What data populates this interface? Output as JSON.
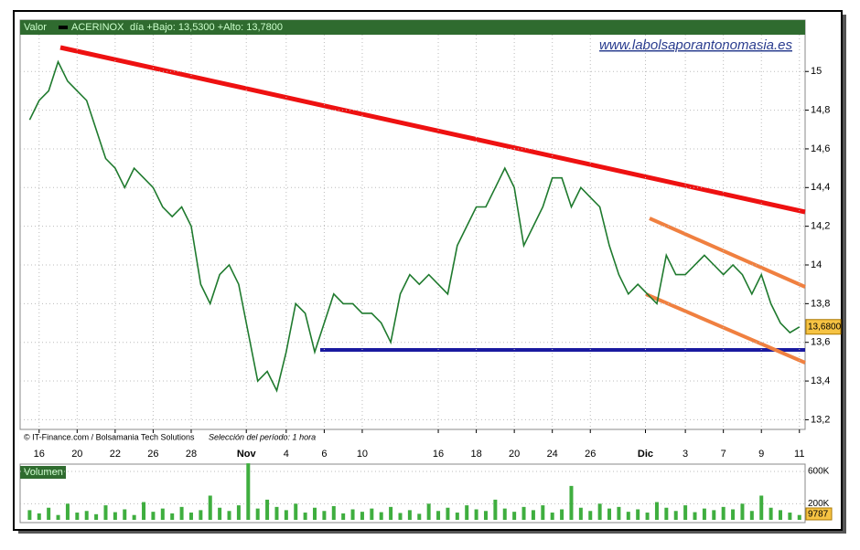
{
  "chart_data": {
    "type": "line",
    "header": {
      "label": "Valor",
      "info": "día +Bajo: 13,5300 +Alto: 13,7800"
    },
    "watermark": "www.labolsaporantonomasia.es",
    "footer": {
      "source": "© IT-Finance.com / Bolsamania Tech Solutions",
      "period": "Selección del período: 1 hora"
    },
    "x": [
      -0.5,
      0,
      0.5,
      1,
      1.5,
      2,
      2.5,
      3,
      3.5,
      4,
      4.5,
      5,
      5.5,
      6,
      6.5,
      7,
      7.5,
      8,
      8.5,
      9,
      9.5,
      10,
      10.5,
      11,
      11.5,
      12,
      12.5,
      13,
      13.5,
      14,
      14.5,
      15,
      15.5,
      16,
      16.5,
      17,
      17.5,
      18,
      18.5,
      19,
      19.5,
      20,
      20.5,
      21,
      21.5,
      22,
      22.5,
      23,
      23.5,
      24,
      24.5,
      25,
      25.5,
      26,
      26.5,
      27,
      27.5,
      28,
      28.5,
      29,
      29.5,
      30,
      30.5,
      31,
      31.5,
      32,
      32.5,
      33,
      33.5,
      34,
      34.5,
      35,
      35.5,
      36,
      36.5,
      37,
      37.5,
      38,
      38.5,
      39,
      39.5,
      40
    ],
    "xlim": [
      -1,
      40.3
    ],
    "xticks": [
      {
        "value": 0,
        "label": "16"
      },
      {
        "value": 2,
        "label": "20"
      },
      {
        "value": 4,
        "label": "22"
      },
      {
        "value": 6,
        "label": "26"
      },
      {
        "value": 8,
        "label": "28"
      },
      {
        "value": 10.9,
        "label": "Nov"
      },
      {
        "value": 13,
        "label": "4"
      },
      {
        "value": 15,
        "label": "6"
      },
      {
        "value": 17,
        "label": "10"
      },
      {
        "value": 21,
        "label": "16"
      },
      {
        "value": 23,
        "label": "18"
      },
      {
        "value": 25,
        "label": "20"
      },
      {
        "value": 27,
        "label": "24"
      },
      {
        "value": 29,
        "label": "26"
      },
      {
        "value": 31.9,
        "label": "Dic"
      },
      {
        "value": 34,
        "label": "3"
      },
      {
        "value": 36,
        "label": "7"
      },
      {
        "value": 38,
        "label": "9"
      },
      {
        "value": 40,
        "label": "11"
      }
    ],
    "series": [
      {
        "name": "ACERINOX",
        "color": "#1f7a2e",
        "values": [
          14.75,
          14.85,
          14.9,
          15.05,
          14.95,
          14.9,
          14.85,
          14.7,
          14.55,
          14.5,
          14.4,
          14.5,
          14.45,
          14.4,
          14.3,
          14.25,
          14.3,
          14.2,
          13.9,
          13.8,
          13.95,
          14.0,
          13.9,
          13.65,
          13.4,
          13.45,
          13.35,
          13.55,
          13.8,
          13.75,
          13.55,
          13.7,
          13.85,
          13.8,
          13.8,
          13.75,
          13.75,
          13.7,
          13.6,
          13.85,
          13.95,
          13.9,
          13.95,
          13.9,
          13.85,
          14.1,
          14.2,
          14.3,
          14.3,
          14.4,
          14.5,
          14.4,
          14.1,
          14.2,
          14.3,
          14.45,
          14.45,
          14.3,
          14.4,
          14.35,
          14.3,
          14.1,
          13.95,
          13.85,
          13.9,
          13.85,
          13.8,
          14.05,
          13.95,
          13.95,
          14.0,
          14.05,
          14.0,
          13.95,
          14.0,
          13.95,
          13.85,
          13.95,
          13.8,
          13.7,
          13.65,
          13.68
        ]
      }
    ],
    "ylim": [
      13.15,
      15.19
    ],
    "yticks": [
      {
        "value": 13.2,
        "label": "13,2"
      },
      {
        "value": 13.4,
        "label": "13,4"
      },
      {
        "value": 13.6,
        "label": "13,6"
      },
      {
        "value": 13.8,
        "label": "13,8"
      },
      14,
      {
        "value": 14.2,
        "label": "14,2"
      },
      {
        "value": 14.4,
        "label": "14,4"
      },
      {
        "value": 14.6,
        "label": "14,6"
      },
      {
        "value": 14.8,
        "label": "14,8"
      },
      15
    ],
    "last_price": {
      "value": 13.68,
      "label": "13,6800"
    },
    "grid": true,
    "volume": {
      "title": "Volumen",
      "color": "#3fae3f",
      "values": [
        120000,
        80000,
        150000,
        60000,
        200000,
        90000,
        110000,
        70000,
        180000,
        95000,
        130000,
        60000,
        220000,
        100000,
        140000,
        80000,
        160000,
        90000,
        120000,
        300000,
        150000,
        110000,
        180000,
        700000,
        140000,
        250000,
        160000,
        120000,
        200000,
        90000,
        150000,
        110000,
        170000,
        80000,
        130000,
        100000,
        140000,
        95000,
        160000,
        85000,
        120000,
        75000,
        200000,
        110000,
        150000,
        90000,
        180000,
        130000,
        110000,
        250000,
        140000,
        100000,
        160000,
        120000,
        180000,
        90000,
        130000,
        420000,
        150000,
        110000,
        200000,
        140000,
        160000,
        100000,
        130000,
        90000,
        220000,
        150000,
        110000,
        180000,
        95000,
        140000,
        120000,
        160000,
        130000,
        200000,
        110000,
        300000,
        150000,
        120000,
        90000,
        60000
      ],
      "ylim": [
        0,
        690000
      ],
      "yticks": [
        {
          "value": 600000,
          "label": "600K"
        },
        {
          "value": 200000,
          "label": "200K"
        }
      ],
      "last": 9787
    }
  }
}
